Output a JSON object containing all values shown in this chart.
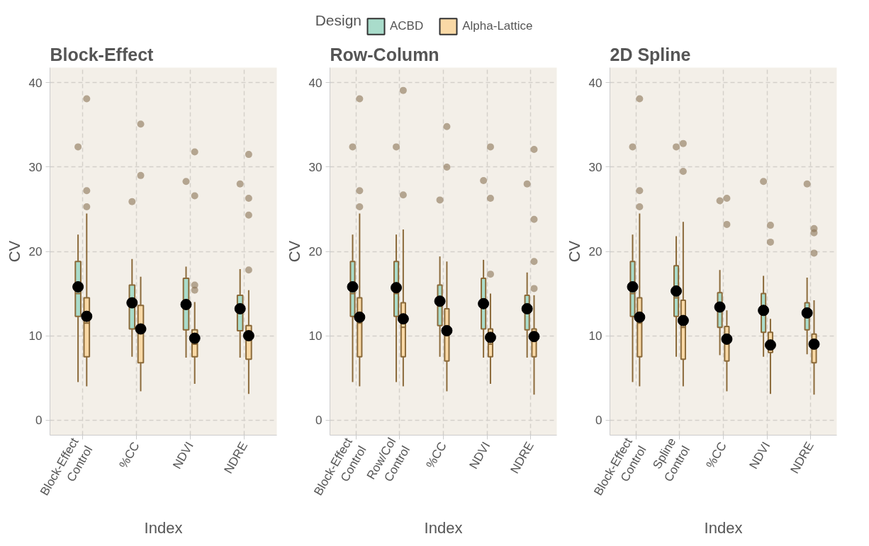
{
  "chart_data": [
    {
      "type": "box",
      "title": "Block-Effect",
      "xlabel": "Index",
      "ylabel": "CV",
      "legend_title": "Design",
      "legend": "top",
      "grid": true,
      "categories": [
        "Block-Effect\nControl",
        "%CC",
        "NDVI",
        "NDRE"
      ],
      "ylim": [
        -1.8,
        41.8
      ],
      "yticks": [
        0,
        10,
        20,
        30,
        40
      ],
      "series": [
        {
          "name": "ACBD",
          "color": "#a9dccb",
          "boxes": [
            {
              "low": 4.5,
              "q1": 12.3,
              "median": 15.0,
              "q3": 18.8,
              "high": 22.0,
              "mean": 15.8,
              "outliers": [
                32.4
              ]
            },
            {
              "low": 7.5,
              "q1": 10.8,
              "median": 13.5,
              "q3": 16.0,
              "high": 19.1,
              "mean": 13.9,
              "outliers": [
                25.9
              ]
            },
            {
              "low": 7.4,
              "q1": 10.7,
              "median": 13.5,
              "q3": 16.8,
              "high": 18.2,
              "mean": 13.7,
              "outliers": [
                28.3
              ]
            },
            {
              "low": 7.4,
              "q1": 10.6,
              "median": 13.0,
              "q3": 14.8,
              "high": 17.9,
              "mean": 13.2,
              "outliers": [
                28.0
              ]
            }
          ]
        },
        {
          "name": "Alpha-Lattice",
          "color": "#f9d9a6",
          "boxes": [
            {
              "low": 4.0,
              "q1": 7.5,
              "median": 11.5,
              "q3": 14.5,
              "high": 24.5,
              "mean": 12.3,
              "outliers": [
                38.1,
                27.2,
                25.3
              ]
            },
            {
              "low": 3.4,
              "q1": 6.8,
              "median": 10.5,
              "q3": 13.6,
              "high": 17.0,
              "mean": 10.8,
              "outliers": [
                35.1,
                29.0
              ]
            },
            {
              "low": 4.3,
              "q1": 7.5,
              "median": 9.0,
              "q3": 10.7,
              "high": 14.0,
              "mean": 9.7,
              "outliers": [
                31.8,
                26.6,
                16.0,
                15.4
              ]
            },
            {
              "low": 3.1,
              "q1": 7.2,
              "median": 9.5,
              "q3": 11.2,
              "high": 15.4,
              "mean": 10.0,
              "outliers": [
                31.5,
                26.3,
                24.3,
                17.8
              ]
            }
          ]
        }
      ]
    },
    {
      "type": "box",
      "title": "Row-Column",
      "xlabel": "Index",
      "ylabel": "CV",
      "grid": true,
      "categories": [
        "Block-Effect\nControl",
        "Row/Col\nControl",
        "%CC",
        "NDVI",
        "NDRE"
      ],
      "ylim": [
        -1.8,
        41.8
      ],
      "yticks": [
        0,
        10,
        20,
        30,
        40
      ],
      "series": [
        {
          "color": "#a9dccb",
          "boxes": [
            {
              "low": 4.5,
              "q1": 12.3,
              "median": 15.0,
              "q3": 18.8,
              "high": 22.0,
              "mean": 15.8,
              "outliers": [
                32.4
              ]
            },
            {
              "low": 4.5,
              "q1": 12.3,
              "median": 15.0,
              "q3": 18.8,
              "high": 22.0,
              "mean": 15.7,
              "outliers": [
                32.4
              ]
            },
            {
              "low": 7.5,
              "q1": 11.2,
              "median": 13.5,
              "q3": 16.0,
              "high": 19.4,
              "mean": 14.1,
              "outliers": [
                26.1
              ]
            },
            {
              "low": 7.4,
              "q1": 10.8,
              "median": 13.5,
              "q3": 16.8,
              "high": 19.0,
              "mean": 13.8,
              "outliers": [
                28.4
              ]
            },
            {
              "low": 7.4,
              "q1": 10.7,
              "median": 13.0,
              "q3": 14.8,
              "high": 17.5,
              "mean": 13.2,
              "outliers": [
                28.0
              ]
            }
          ]
        },
        {
          "color": "#f9d9a6",
          "boxes": [
            {
              "low": 4.0,
              "q1": 7.5,
              "median": 11.5,
              "q3": 14.5,
              "high": 24.5,
              "mean": 12.2,
              "outliers": [
                38.1,
                27.2,
                25.3
              ]
            },
            {
              "low": 4.0,
              "q1": 7.5,
              "median": 11.0,
              "q3": 13.9,
              "high": 22.6,
              "mean": 12.0,
              "outliers": [
                39.1,
                26.7
              ]
            },
            {
              "low": 3.4,
              "q1": 7.0,
              "median": 10.0,
              "q3": 13.2,
              "high": 18.8,
              "mean": 10.6,
              "outliers": [
                34.8,
                30.0
              ]
            },
            {
              "low": 4.3,
              "q1": 7.5,
              "median": 9.0,
              "q3": 10.8,
              "high": 15.0,
              "mean": 9.8,
              "outliers": [
                32.4,
                26.3,
                17.3
              ]
            },
            {
              "low": 3.0,
              "q1": 7.5,
              "median": 9.5,
              "q3": 10.8,
              "high": 14.8,
              "mean": 9.9,
              "outliers": [
                32.1,
                23.8,
                18.8,
                15.6
              ]
            }
          ]
        }
      ]
    },
    {
      "type": "box",
      "title": "2D Spline",
      "xlabel": "Index",
      "ylabel": "CV",
      "grid": true,
      "categories": [
        "Block-Effect\nControl",
        "Spline\nControl",
        "%CC",
        "NDVI",
        "NDRE"
      ],
      "ylim": [
        -1.8,
        41.8
      ],
      "yticks": [
        0,
        10,
        20,
        30,
        40
      ],
      "series": [
        {
          "color": "#a9dccb",
          "boxes": [
            {
              "low": 4.5,
              "q1": 12.3,
              "median": 15.0,
              "q3": 18.8,
              "high": 22.0,
              "mean": 15.8,
              "outliers": [
                32.4
              ]
            },
            {
              "low": 7.5,
              "q1": 12.3,
              "median": 14.5,
              "q3": 18.3,
              "high": 21.8,
              "mean": 15.3,
              "outliers": [
                32.4
              ]
            },
            {
              "low": 7.7,
              "q1": 11.0,
              "median": 13.0,
              "q3": 15.1,
              "high": 17.8,
              "mean": 13.4,
              "outliers": [
                26.0
              ]
            },
            {
              "low": 7.5,
              "q1": 10.4,
              "median": 12.5,
              "q3": 15.0,
              "high": 17.1,
              "mean": 13.0,
              "outliers": [
                28.3
              ]
            },
            {
              "low": 7.8,
              "q1": 10.7,
              "median": 12.5,
              "q3": 13.9,
              "high": 16.9,
              "mean": 12.7,
              "outliers": [
                28.0
              ]
            }
          ]
        },
        {
          "color": "#f9d9a6",
          "boxes": [
            {
              "low": 4.0,
              "q1": 7.5,
              "median": 11.5,
              "q3": 14.5,
              "high": 24.5,
              "mean": 12.2,
              "outliers": [
                38.1,
                27.2,
                25.3
              ]
            },
            {
              "low": 4.0,
              "q1": 7.2,
              "median": 11.0,
              "q3": 14.2,
              "high": 23.5,
              "mean": 11.8,
              "outliers": [
                32.8,
                29.5
              ]
            },
            {
              "low": 3.4,
              "q1": 7.0,
              "median": 9.0,
              "q3": 11.1,
              "high": 13.0,
              "mean": 9.6,
              "outliers": [
                26.3,
                23.2
              ]
            },
            {
              "low": 3.1,
              "q1": 8.0,
              "median": 8.8,
              "q3": 10.4,
              "high": 12.0,
              "mean": 8.9,
              "outliers": [
                23.1,
                21.1
              ]
            },
            {
              "low": 3.0,
              "q1": 6.8,
              "median": 8.5,
              "q3": 10.2,
              "high": 14.2,
              "mean": 9.0,
              "outliers": [
                22.7,
                22.2,
                19.8
              ]
            }
          ]
        }
      ]
    }
  ]
}
